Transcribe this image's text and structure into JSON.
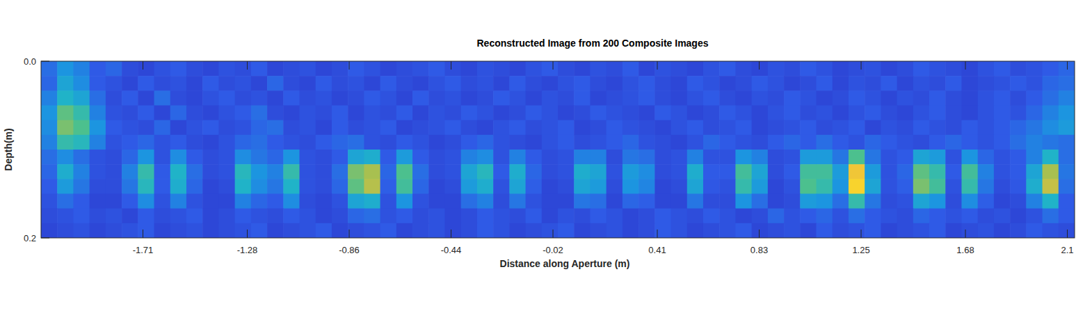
{
  "chart_data": {
    "type": "heatmap",
    "title": "Reconstructed Image from 200 Composite Images",
    "xlabel": "Distance along Aperture (m)",
    "ylabel": "Depth(m)",
    "xlim": [
      -2.13,
      2.13
    ],
    "ylim": [
      0,
      0.2
    ],
    "xticks": [
      -1.71,
      -1.28,
      -0.86,
      -0.44,
      -0.02,
      0.41,
      0.83,
      1.25,
      1.68,
      2.1
    ],
    "yticks": [
      {
        "value": 0,
        "label": "0.0"
      },
      0.2
    ],
    "zlim": [
      0,
      100
    ],
    "cells": [
      [
        30,
        40,
        35,
        25,
        28,
        20,
        18,
        22,
        25,
        20,
        18,
        22,
        20,
        25,
        18,
        20,
        22,
        18,
        20,
        25,
        22,
        18,
        20,
        22,
        25,
        20,
        18,
        22,
        20,
        18,
        22,
        25,
        20,
        18,
        22,
        20,
        25,
        18,
        22,
        20,
        18,
        22,
        25,
        20,
        18,
        22,
        20,
        25,
        22,
        18,
        20,
        22,
        18,
        20,
        25,
        22,
        20,
        18,
        22,
        25,
        20,
        22,
        25,
        28
      ],
      [
        28,
        45,
        38,
        25,
        22,
        18,
        25,
        20,
        22,
        18,
        25,
        20,
        22,
        18,
        28,
        20,
        18,
        25,
        20,
        22,
        18,
        25,
        20,
        18,
        22,
        25,
        20,
        22,
        18,
        25,
        20,
        18,
        22,
        25,
        20,
        18,
        22,
        25,
        20,
        18,
        25,
        22,
        18,
        20,
        25,
        22,
        18,
        20,
        25,
        18,
        22,
        20,
        25,
        18,
        22,
        20,
        25,
        18,
        20,
        22,
        25,
        22,
        28,
        30
      ],
      [
        35,
        50,
        45,
        30,
        20,
        25,
        18,
        30,
        20,
        18,
        22,
        25,
        20,
        22,
        18,
        25,
        20,
        22,
        18,
        20,
        25,
        22,
        18,
        25,
        20,
        22,
        18,
        20,
        25,
        22,
        18,
        22,
        20,
        25,
        18,
        20,
        22,
        25,
        20,
        18,
        22,
        25,
        20,
        18,
        22,
        20,
        25,
        22,
        18,
        20,
        25,
        22,
        18,
        22,
        20,
        25,
        20,
        18,
        22,
        25,
        20,
        25,
        30,
        35
      ],
      [
        40,
        62,
        55,
        35,
        22,
        20,
        25,
        18,
        28,
        20,
        18,
        22,
        25,
        30,
        20,
        18,
        22,
        20,
        25,
        18,
        22,
        20,
        25,
        18,
        22,
        20,
        25,
        22,
        18,
        20,
        25,
        22,
        18,
        20,
        25,
        22,
        20,
        18,
        25,
        22,
        18,
        20,
        25,
        22,
        18,
        22,
        25,
        20,
        22,
        18,
        22,
        25,
        20,
        18,
        22,
        25,
        20,
        18,
        22,
        25,
        22,
        28,
        35,
        40
      ],
      [
        38,
        65,
        60,
        40,
        25,
        22,
        20,
        28,
        18,
        22,
        25,
        20,
        22,
        28,
        30,
        20,
        22,
        18,
        25,
        20,
        22,
        25,
        18,
        20,
        22,
        25,
        20,
        18,
        22,
        25,
        20,
        22,
        25,
        18,
        20,
        25,
        22,
        20,
        18,
        22,
        25,
        20,
        22,
        25,
        18,
        20,
        22,
        25,
        20,
        22,
        25,
        18,
        22,
        20,
        25,
        22,
        20,
        25,
        22,
        25,
        28,
        32,
        38,
        42
      ],
      [
        35,
        55,
        52,
        35,
        22,
        25,
        28,
        22,
        25,
        20,
        18,
        22,
        28,
        30,
        25,
        22,
        20,
        25,
        28,
        30,
        22,
        20,
        25,
        22,
        18,
        20,
        25,
        28,
        22,
        20,
        18,
        22,
        25,
        20,
        22,
        25,
        28,
        22,
        20,
        18,
        22,
        28,
        25,
        22,
        20,
        25,
        28,
        25,
        30,
        25,
        22,
        28,
        25,
        22,
        20,
        25,
        28,
        25,
        22,
        25,
        30,
        35,
        32,
        30
      ],
      [
        30,
        38,
        30,
        22,
        20,
        28,
        40,
        22,
        38,
        25,
        20,
        22,
        38,
        32,
        28,
        40,
        22,
        20,
        25,
        45,
        48,
        25,
        42,
        25,
        20,
        22,
        35,
        38,
        22,
        35,
        25,
        20,
        22,
        35,
        35,
        20,
        32,
        30,
        20,
        22,
        35,
        22,
        22,
        40,
        35,
        20,
        22,
        42,
        42,
        32,
        60,
        32,
        22,
        25,
        45,
        42,
        22,
        40,
        28,
        22,
        25,
        35,
        50,
        30
      ],
      [
        28,
        48,
        35,
        22,
        20,
        35,
        55,
        25,
        50,
        30,
        20,
        22,
        52,
        40,
        35,
        55,
        22,
        20,
        30,
        65,
        70,
        28,
        60,
        30,
        20,
        22,
        45,
        52,
        25,
        48,
        28,
        20,
        22,
        48,
        45,
        22,
        42,
        38,
        20,
        22,
        48,
        25,
        25,
        58,
        45,
        20,
        25,
        58,
        58,
        42,
        82,
        42,
        22,
        28,
        62,
        55,
        25,
        58,
        35,
        22,
        25,
        45,
        70,
        32
      ],
      [
        25,
        42,
        32,
        20,
        20,
        32,
        52,
        25,
        48,
        28,
        18,
        20,
        50,
        38,
        32,
        50,
        22,
        20,
        28,
        62,
        72,
        26,
        58,
        28,
        18,
        20,
        42,
        48,
        22,
        45,
        26,
        18,
        20,
        45,
        42,
        20,
        40,
        36,
        18,
        20,
        45,
        24,
        22,
        55,
        42,
        18,
        22,
        60,
        55,
        40,
        88,
        45,
        22,
        26,
        65,
        58,
        22,
        55,
        32,
        20,
        24,
        48,
        74,
        30
      ],
      [
        22,
        30,
        25,
        18,
        18,
        25,
        38,
        22,
        35,
        22,
        18,
        18,
        35,
        28,
        25,
        38,
        20,
        18,
        22,
        45,
        48,
        22,
        40,
        22,
        18,
        18,
        30,
        35,
        20,
        32,
        22,
        18,
        18,
        32,
        30,
        18,
        28,
        26,
        18,
        18,
        32,
        20,
        20,
        40,
        30,
        18,
        20,
        42,
        40,
        30,
        55,
        32,
        20,
        22,
        45,
        40,
        20,
        38,
        26,
        18,
        20,
        35,
        50,
        25
      ],
      [
        20,
        22,
        25,
        20,
        22,
        18,
        25,
        20,
        22,
        25,
        18,
        20,
        25,
        22,
        20,
        25,
        22,
        18,
        20,
        28,
        30,
        22,
        25,
        20,
        22,
        18,
        20,
        25,
        22,
        20,
        25,
        18,
        22,
        20,
        25,
        22,
        18,
        20,
        25,
        22,
        20,
        25,
        22,
        18,
        20,
        28,
        22,
        25,
        28,
        22,
        30,
        25,
        22,
        20,
        28,
        25,
        22,
        25,
        20,
        22,
        18,
        22,
        30,
        25
      ],
      [
        18,
        20,
        22,
        18,
        20,
        22,
        25,
        18,
        20,
        22,
        18,
        20,
        22,
        25,
        18,
        20,
        22,
        25,
        18,
        20,
        22,
        25,
        18,
        20,
        22,
        18,
        20,
        25,
        22,
        18,
        20,
        22,
        25,
        18,
        20,
        22,
        18,
        20,
        25,
        22,
        18,
        20,
        22,
        25,
        18,
        20,
        22,
        18,
        25,
        20,
        22,
        25,
        18,
        20,
        22,
        25,
        18,
        20,
        22,
        18,
        20,
        25,
        22,
        20
      ]
    ]
  }
}
